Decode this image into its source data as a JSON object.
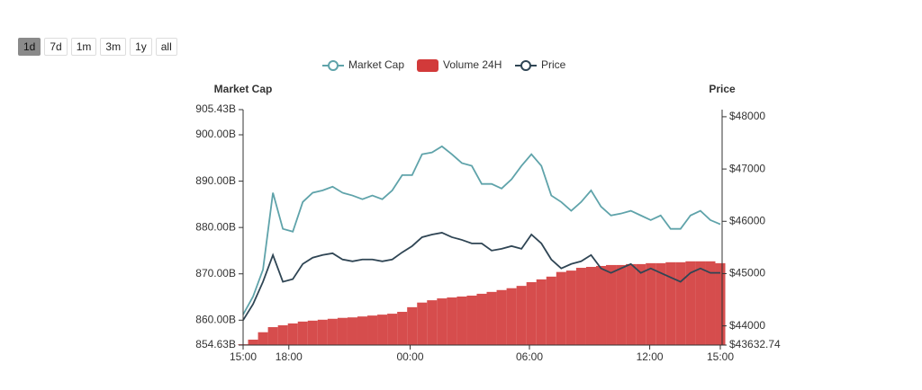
{
  "range_buttons": [
    "1d",
    "7d",
    "1m",
    "3m",
    "1y",
    "all"
  ],
  "active_range_index": 0,
  "chart_data": {
    "type": "line",
    "y_axis_label": "Market Cap",
    "y2_axis_label": "Price",
    "xlim": [
      0,
      48
    ],
    "xticks": [
      {
        "value": 0,
        "label": "15:00"
      },
      {
        "value": 4.6,
        "label": "18:00"
      },
      {
        "value": 16.8,
        "label": "00:00"
      },
      {
        "value": 28.8,
        "label": "06:00"
      },
      {
        "value": 40.9,
        "label": "12:00"
      },
      {
        "value": 48,
        "label": "15:00"
      }
    ],
    "ylim": [
      854.63,
      905.43
    ],
    "yticks": [
      {
        "value": 854.63,
        "label": "854.63B"
      },
      {
        "value": 860,
        "label": "860.00B"
      },
      {
        "value": 870,
        "label": "870.00B"
      },
      {
        "value": 880,
        "label": "880.00B"
      },
      {
        "value": 890,
        "label": "890.00B"
      },
      {
        "value": 900,
        "label": "900.00B"
      },
      {
        "value": 905.43,
        "label": "905.43B"
      }
    ],
    "y2lim": [
      43632.74,
      48136
    ],
    "y2ticks": [
      {
        "value": 43632.74,
        "label": "$43632.74"
      },
      {
        "value": 44000,
        "label": "$44000"
      },
      {
        "value": 45000,
        "label": "$45000"
      },
      {
        "value": 46000,
        "label": "$46000"
      },
      {
        "value": 47000,
        "label": "$47000"
      },
      {
        "value": 48000,
        "label": "$48000"
      }
    ],
    "grid": false,
    "series": [
      {
        "name": "Market Cap",
        "type": "line",
        "color": "#5fa3aa",
        "axis": "y",
        "values": [
          861.2,
          865.1,
          870.9,
          887.5,
          879.7,
          879.1,
          885.5,
          887.5,
          888.0,
          888.8,
          887.5,
          886.9,
          886.1,
          886.9,
          886.1,
          888.0,
          891.3,
          891.3,
          895.8,
          896.2,
          897.5,
          895.8,
          893.9,
          893.3,
          889.4,
          889.4,
          888.4,
          890.4,
          893.3,
          895.8,
          893.3,
          886.9,
          885.5,
          883.6,
          885.5,
          888.0,
          884.5,
          882.6,
          883.0,
          883.6,
          882.6,
          881.6,
          882.6,
          879.7,
          879.7,
          882.6,
          883.6,
          881.6,
          880.7
        ]
      },
      {
        "name": "Volume 24H",
        "type": "bar",
        "color": "#d23a3a",
        "axis": "y",
        "values": [
          854.8,
          855.8,
          857.4,
          858.5,
          858.9,
          859.3,
          859.7,
          859.9,
          860.1,
          860.3,
          860.5,
          860.6,
          860.8,
          861.0,
          861.2,
          861.4,
          861.8,
          862.8,
          863.8,
          864.3,
          864.7,
          864.9,
          865.1,
          865.3,
          865.7,
          866.1,
          866.5,
          866.9,
          867.4,
          868.2,
          868.8,
          869.4,
          870.4,
          870.7,
          871.3,
          871.5,
          871.7,
          871.9,
          871.9,
          872.1,
          872.1,
          872.3,
          872.3,
          872.5,
          872.5,
          872.7,
          872.7,
          872.7,
          872.3
        ]
      },
      {
        "name": "Price",
        "type": "line",
        "color": "#2f4554",
        "axis": "y2",
        "values": [
          44109,
          44416,
          44843,
          45355,
          44843,
          44894,
          45184,
          45304,
          45355,
          45389,
          45270,
          45235,
          45270,
          45270,
          45235,
          45270,
          45406,
          45526,
          45696,
          45747,
          45782,
          45696,
          45645,
          45577,
          45577,
          45440,
          45474,
          45526,
          45474,
          45747,
          45577,
          45270,
          45099,
          45184,
          45235,
          45355,
          45099,
          45014,
          45099,
          45184,
          45014,
          45099,
          45014,
          44928,
          44843,
          45014,
          45099,
          45014,
          45014
        ]
      }
    ]
  }
}
